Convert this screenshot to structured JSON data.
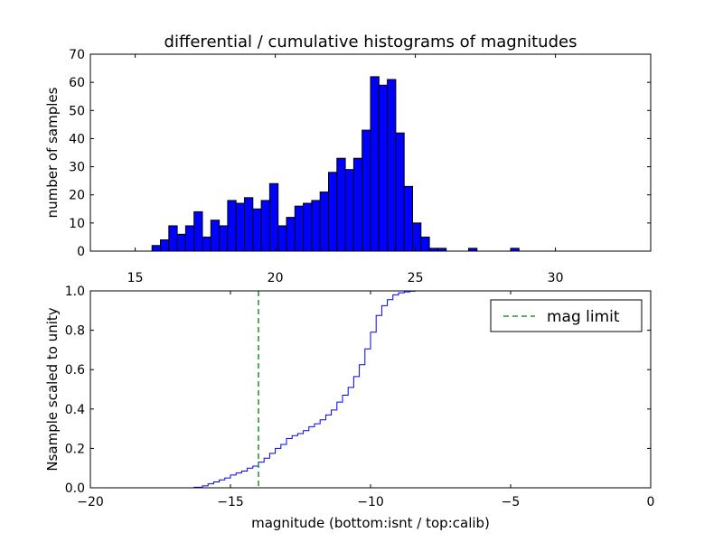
{
  "chart_data": [
    {
      "type": "bar",
      "title": "differential / cumulative histograms of magnitudes",
      "xlabel": "",
      "ylabel": "number of samples",
      "xlim": [
        13.4,
        33.4
      ],
      "ylim": [
        0,
        70
      ],
      "xticks": [
        15,
        20,
        25,
        30
      ],
      "yticks": [
        0,
        10,
        20,
        30,
        40,
        50,
        60,
        70
      ],
      "bar_color": "#0000ff",
      "bin_width": 0.3,
      "bins": [
        {
          "x": 15.6,
          "value": 2
        },
        {
          "x": 15.9,
          "value": 4
        },
        {
          "x": 16.2,
          "value": 9
        },
        {
          "x": 16.5,
          "value": 6
        },
        {
          "x": 16.8,
          "value": 9
        },
        {
          "x": 17.1,
          "value": 14
        },
        {
          "x": 17.4,
          "value": 5
        },
        {
          "x": 17.7,
          "value": 11
        },
        {
          "x": 18.0,
          "value": 9
        },
        {
          "x": 18.3,
          "value": 18
        },
        {
          "x": 18.6,
          "value": 17
        },
        {
          "x": 18.9,
          "value": 19
        },
        {
          "x": 19.2,
          "value": 15
        },
        {
          "x": 19.5,
          "value": 18
        },
        {
          "x": 19.8,
          "value": 24
        },
        {
          "x": 20.1,
          "value": 9
        },
        {
          "x": 20.4,
          "value": 12
        },
        {
          "x": 20.7,
          "value": 16
        },
        {
          "x": 21.0,
          "value": 17
        },
        {
          "x": 21.3,
          "value": 18
        },
        {
          "x": 21.6,
          "value": 21
        },
        {
          "x": 21.9,
          "value": 28
        },
        {
          "x": 22.2,
          "value": 33
        },
        {
          "x": 22.5,
          "value": 29
        },
        {
          "x": 22.8,
          "value": 33
        },
        {
          "x": 23.1,
          "value": 43
        },
        {
          "x": 23.4,
          "value": 62
        },
        {
          "x": 23.7,
          "value": 59
        },
        {
          "x": 24.0,
          "value": 61
        },
        {
          "x": 24.3,
          "value": 42
        },
        {
          "x": 24.6,
          "value": 23
        },
        {
          "x": 24.9,
          "value": 10
        },
        {
          "x": 25.2,
          "value": 5
        },
        {
          "x": 25.5,
          "value": 1
        },
        {
          "x": 25.8,
          "value": 1
        },
        {
          "x": 26.9,
          "value": 1
        },
        {
          "x": 28.4,
          "value": 1
        }
      ]
    },
    {
      "type": "line",
      "step": true,
      "xlabel": "magnitude (bottom:isnt / top:calib)",
      "ylabel": "Nsample scaled to unity",
      "xlim": [
        -20,
        0
      ],
      "ylim": [
        0.0,
        1.0
      ],
      "xticks": [
        -20,
        -15,
        -10,
        -5,
        0
      ],
      "yticks": [
        0.0,
        0.2,
        0.4,
        0.6,
        0.8,
        1.0
      ],
      "series": [
        {
          "name": "cumulative",
          "color": "#0000ff",
          "x": [
            -20.0,
            -16.3,
            -16.0,
            -15.8,
            -15.6,
            -15.4,
            -15.2,
            -15.0,
            -14.8,
            -14.6,
            -14.4,
            -14.2,
            -14.0,
            -13.8,
            -13.6,
            -13.4,
            -13.2,
            -13.0,
            -12.8,
            -12.6,
            -12.4,
            -12.2,
            -12.0,
            -11.8,
            -11.6,
            -11.4,
            -11.2,
            -11.0,
            -10.8,
            -10.6,
            -10.4,
            -10.2,
            -10.0,
            -9.8,
            -9.6,
            -9.4,
            -9.2,
            -9.0,
            -8.8,
            -8.6,
            -8.4,
            -8.2,
            -8.0,
            -7.8,
            0.0
          ],
          "y": [
            0.0,
            0.003,
            0.01,
            0.02,
            0.03,
            0.04,
            0.05,
            0.065,
            0.075,
            0.085,
            0.1,
            0.11,
            0.13,
            0.15,
            0.175,
            0.2,
            0.22,
            0.25,
            0.265,
            0.275,
            0.29,
            0.31,
            0.325,
            0.345,
            0.37,
            0.395,
            0.435,
            0.47,
            0.51,
            0.565,
            0.625,
            0.705,
            0.79,
            0.875,
            0.925,
            0.955,
            0.98,
            0.99,
            0.995,
            0.998,
            1.0,
            1.0,
            1.0,
            1.0,
            1.0
          ]
        },
        {
          "name": "mag limit",
          "color": "#008000",
          "style": "dashed",
          "vline_x": -14.0
        }
      ],
      "legend": {
        "entries": [
          "mag limit"
        ],
        "position": "top-right"
      }
    }
  ]
}
